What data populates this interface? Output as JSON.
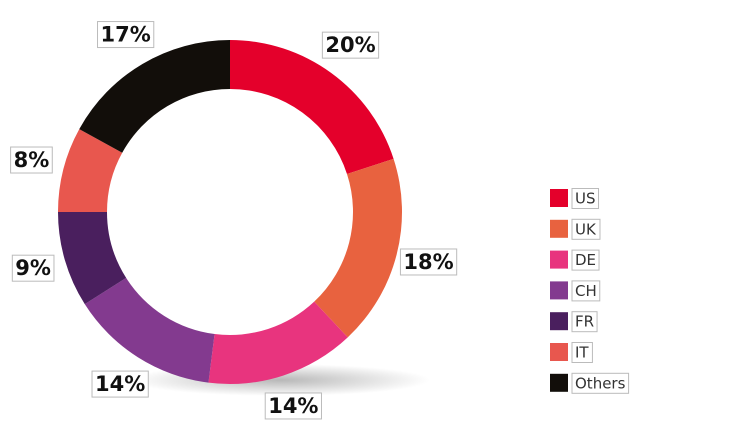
{
  "chart_data": {
    "type": "donut",
    "categories": [
      "US",
      "UK",
      "DE",
      "CH",
      "FR",
      "IT",
      "Others"
    ],
    "values": [
      20,
      18,
      14,
      14,
      9,
      8,
      17
    ],
    "value_labels": [
      "20%",
      "18%",
      "14%",
      "14%",
      "9%",
      "8%",
      "17%"
    ],
    "colors": [
      "#e4002b",
      "#e8623f",
      "#e8347e",
      "#833a8f",
      "#4a1f5e",
      "#e8574e",
      "#120e0a"
    ],
    "legend": "right"
  }
}
